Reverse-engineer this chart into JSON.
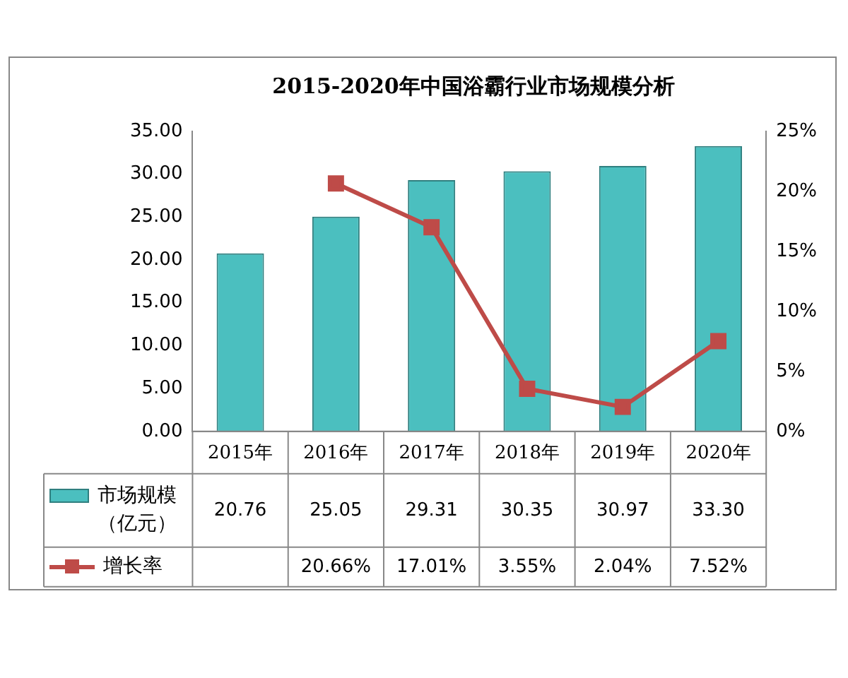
{
  "chart_data": {
    "type": "bar",
    "title": "2015-2020年中国浴霸行业市场规模分析",
    "categories": [
      "2015年",
      "2016年",
      "2017年",
      "2018年",
      "2019年",
      "2020年"
    ],
    "series": [
      {
        "name": "市场规模（亿元）",
        "color": "#4bbfbf",
        "values": [
          20.76,
          25.05,
          29.31,
          30.35,
          30.97,
          33.3
        ],
        "value_labels": [
          "20.76",
          "25.05",
          "29.31",
          "30.35",
          "30.97",
          "33.30"
        ]
      },
      {
        "name": "增长率",
        "type": "line",
        "axis": "y2",
        "color": "#be4b48",
        "values": [
          null,
          20.66,
          17.01,
          3.55,
          2.04,
          7.52
        ],
        "value_labels": [
          null,
          "20.66%",
          "17.01%",
          "3.55%",
          "2.04%",
          "7.52%"
        ]
      }
    ],
    "ylim": [
      0,
      35
    ],
    "yticks": [
      {
        "value": 0,
        "label": "0.00"
      },
      {
        "value": 5,
        "label": "5.00"
      },
      {
        "value": 10,
        "label": "10.00"
      },
      {
        "value": 15,
        "label": "15.00"
      },
      {
        "value": 20,
        "label": "20.00"
      },
      {
        "value": 25,
        "label": "25.00"
      },
      {
        "value": 30,
        "label": "30.00"
      },
      {
        "value": 35,
        "label": "35.00"
      }
    ],
    "y2lim": [
      0,
      25
    ],
    "y2ticks": [
      {
        "value": 0,
        "label": "0%"
      },
      {
        "value": 5,
        "label": "5%"
      },
      {
        "value": 10,
        "label": "10%"
      },
      {
        "value": 15,
        "label": "15%"
      },
      {
        "value": 20,
        "label": "20%"
      },
      {
        "value": 25,
        "label": "25%"
      }
    ],
    "grid": false,
    "legend": "bottom",
    "marker": "square",
    "line_style": "solid"
  }
}
